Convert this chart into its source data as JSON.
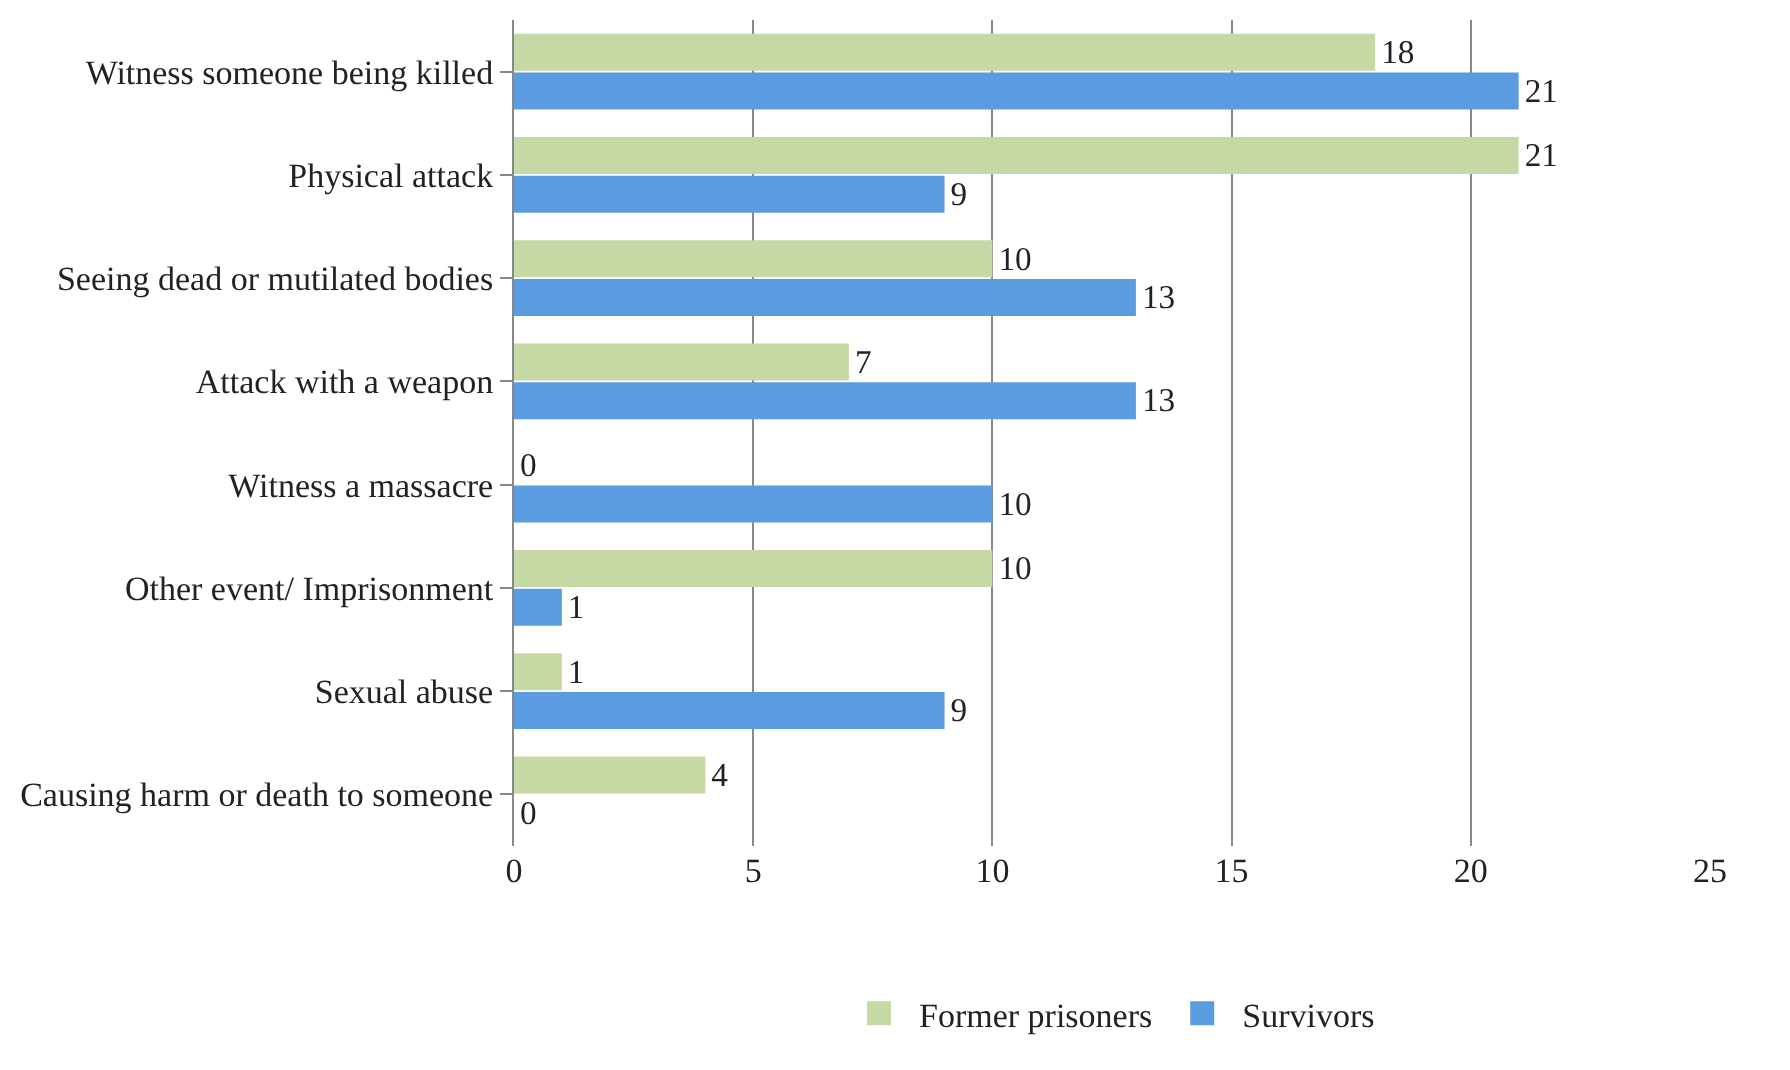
{
  "chart_data": {
    "type": "bar",
    "orientation": "horizontal",
    "categories": [
      "Witness someone being killed",
      "Physical attack",
      "Seeing dead or mutilated bodies",
      "Attack with a weapon",
      "Witness a massacre",
      "Other event/ Imprisonment",
      "Sexual abuse",
      "Causing harm or death to someone"
    ],
    "series": [
      {
        "name": "Former prisoners",
        "color": "#c6d9a5",
        "values": [
          18,
          21,
          10,
          7,
          0,
          10,
          1,
          4
        ]
      },
      {
        "name": "Survivors",
        "color": "#5b9be0",
        "values": [
          21,
          9,
          13,
          13,
          10,
          1,
          9,
          0
        ]
      }
    ],
    "xlim": [
      0,
      25
    ],
    "xticks": [
      0,
      5,
      10,
      15,
      20,
      25
    ],
    "grid": "x",
    "legend": "bottom",
    "data_labels": true
  }
}
